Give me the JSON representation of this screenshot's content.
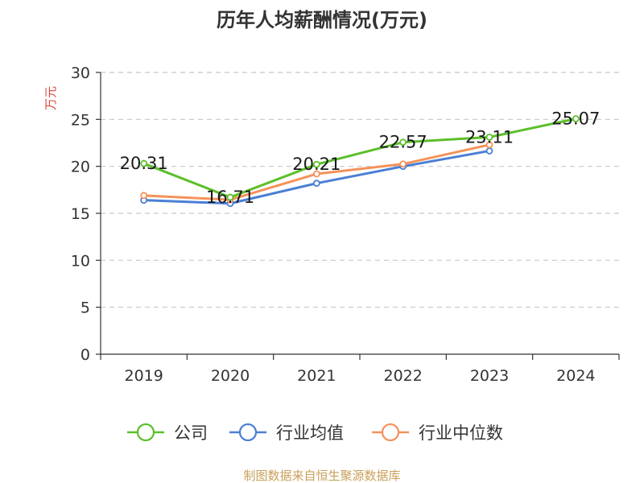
{
  "chart_data": {
    "type": "line",
    "title": "历年人均薪酬情况(万元)",
    "ylabel": "万元",
    "xlabel": "",
    "categories": [
      "2019",
      "2020",
      "2021",
      "2022",
      "2023",
      "2024"
    ],
    "ylim": [
      0,
      30
    ],
    "yticks": [
      "0",
      "5",
      "10",
      "15",
      "20",
      "25",
      "30"
    ],
    "grid": true,
    "legend_position": "bottom",
    "series": [
      {
        "name": "公司",
        "values": [
          20.31,
          16.71,
          20.21,
          22.57,
          23.11,
          25.07
        ],
        "color": "#5cbf2a",
        "data_labels": [
          "20.31",
          "16.71",
          "20.21",
          "22.57",
          "23.11",
          "25.07"
        ]
      },
      {
        "name": "行业均值",
        "values": [
          16.4,
          16.05,
          18.2,
          20.0,
          21.65,
          null
        ],
        "color": "#4a7fd4"
      },
      {
        "name": "行业中位数",
        "values": [
          16.9,
          16.45,
          19.2,
          20.25,
          22.3,
          null
        ],
        "color": "#f4925a"
      }
    ],
    "source": "制图数据来自恒生聚源数据库",
    "source_color": "#c8a05a",
    "ylabel_color": "#e0453a"
  }
}
